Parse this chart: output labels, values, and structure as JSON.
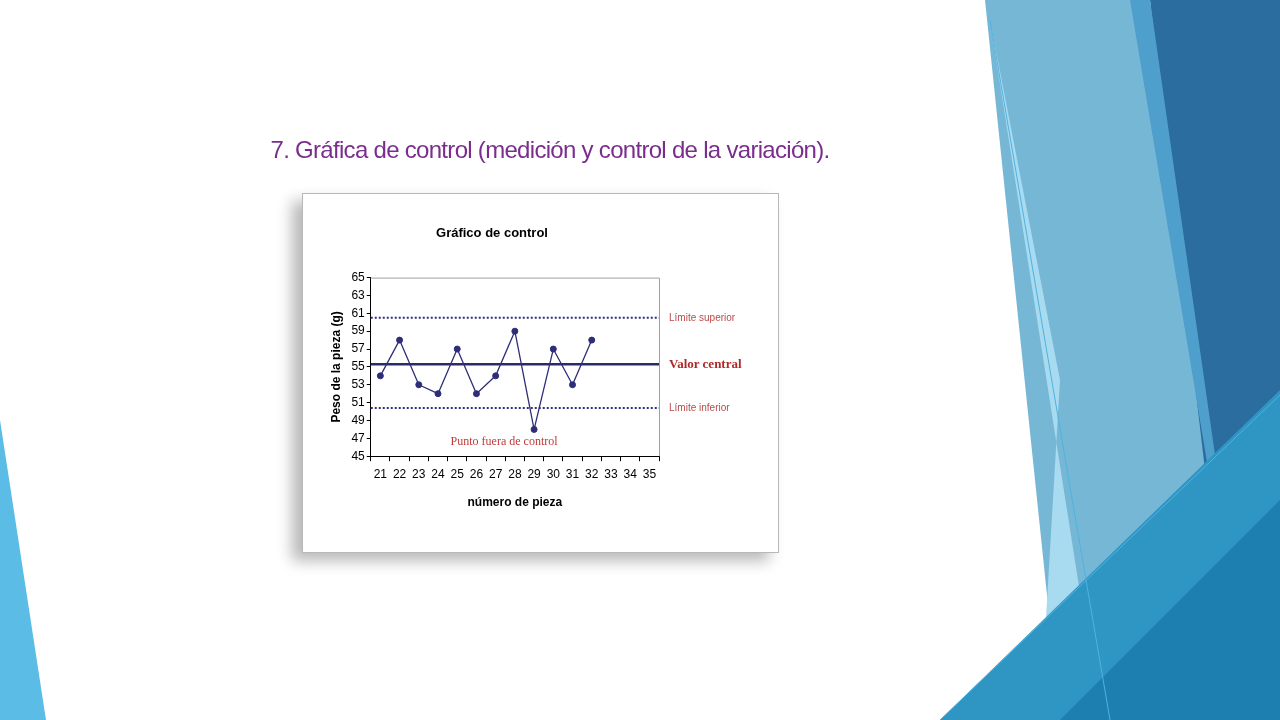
{
  "chart_data": {
    "type": "line",
    "title": "7. Gráfica de control (medición y control de la variación).",
    "subtitle": "Gráfico de control",
    "xlabel": "número de pieza",
    "ylabel": "Peso de la pieza (g)",
    "categories": [
      "21",
      "22",
      "23",
      "24",
      "25",
      "26",
      "27",
      "28",
      "29",
      "30",
      "31",
      "32",
      "33",
      "34",
      "35"
    ],
    "series": [
      {
        "color": "#2e2e78",
        "values": [
          54,
          58,
          53,
          52,
          57,
          52,
          54,
          59,
          48,
          57,
          53,
          58,
          null,
          null,
          null
        ]
      }
    ],
    "ylim": [
      45,
      65
    ],
    "yticks": [
      45,
      47,
      49,
      51,
      53,
      55,
      57,
      59,
      61,
      63,
      65
    ],
    "ref_lines": [
      {
        "axis": "y",
        "value": 60.5,
        "label": "Límite superior",
        "color": "#2f2f7f",
        "line_style": "dotted"
      },
      {
        "axis": "y",
        "value": 55.3,
        "label": "Valor central",
        "color": "#2b2b6b",
        "line_style": "solid"
      },
      {
        "axis": "y",
        "value": 50.4,
        "label": "Límite inferior",
        "color": "#2f2f7f",
        "line_style": "dotted"
      }
    ],
    "annotations": [
      {
        "text": "Punto fuera de control",
        "x": "29",
        "y": 48
      }
    ],
    "marker": "circle",
    "line_style": "solid"
  }
}
